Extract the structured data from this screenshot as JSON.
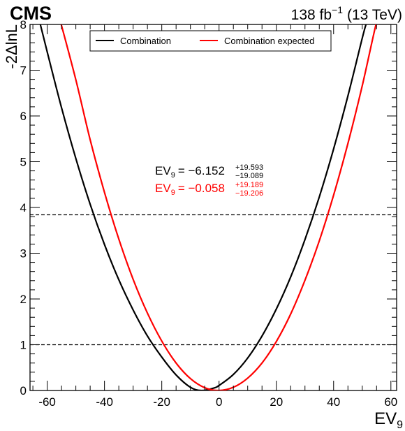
{
  "header": {
    "experiment": "CMS",
    "lumi_value": "138 fb",
    "lumi_exp": "−1",
    "energy": "(13 TeV)"
  },
  "chart_data": {
    "type": "line",
    "xlabel": "EV",
    "xlabel_sub": "9",
    "ylabel": "-2ΔlnL",
    "xlim": [
      -66,
      62
    ],
    "ylim": [
      0,
      8
    ],
    "xticks": [
      -60,
      -40,
      -20,
      0,
      20,
      40,
      60
    ],
    "yticks": [
      0,
      1,
      2,
      3,
      4,
      5,
      6,
      7,
      8
    ],
    "reference_lines": [
      1.0,
      3.84
    ],
    "legend_position": "top-center",
    "series": [
      {
        "name": "Combination",
        "color": "#000000",
        "x": [
          -62.4,
          -60,
          -55,
          -50,
          -45,
          -40,
          -35,
          -30,
          -25,
          -20,
          -15,
          -10,
          -6.15,
          -2,
          0,
          5,
          10,
          15,
          20,
          25,
          30,
          35,
          40,
          45,
          50,
          51.3
        ],
        "y": [
          8.0,
          7.4,
          6.18,
          5.07,
          4.07,
          3.19,
          2.42,
          1.76,
          1.19,
          0.73,
          0.34,
          0.07,
          0.0,
          0.05,
          0.11,
          0.35,
          0.71,
          1.19,
          1.78,
          2.48,
          3.3,
          4.23,
          5.28,
          6.44,
          7.7,
          8.0
        ],
        "label_text": "= −6.152",
        "label_sup": "+19.593",
        "label_sub": "−19.089"
      },
      {
        "name": "Combination expected",
        "color": "#ff0000",
        "x": [
          -55.1,
          -50,
          -45,
          -40,
          -35,
          -30,
          -25,
          -20,
          -15,
          -10,
          -5,
          -0.06,
          5,
          10,
          15,
          20,
          25,
          30,
          35,
          40,
          45,
          50,
          55,
          55.8
        ],
        "y": [
          8.0,
          6.79,
          5.48,
          4.33,
          3.31,
          2.43,
          1.69,
          1.08,
          0.6,
          0.26,
          0.06,
          0.0,
          0.07,
          0.27,
          0.6,
          1.07,
          1.67,
          2.41,
          3.27,
          4.27,
          5.4,
          6.66,
          8.05,
          8.0
        ],
        "label_text": "= −0.058",
        "label_sup": "+19.189",
        "label_sub": "−19.206"
      }
    ],
    "annotation_var": "EV",
    "annotation_var_sub": "9"
  }
}
